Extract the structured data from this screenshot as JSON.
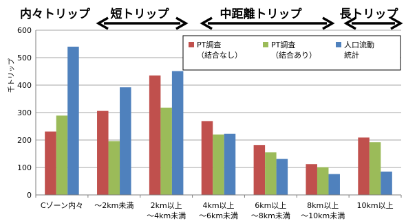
{
  "chart_data": {
    "type": "bar",
    "ylabel": "千トリップ",
    "ylim": [
      0,
      600
    ],
    "yticks": [
      "0",
      "100",
      "200",
      "300",
      "400",
      "500",
      "600"
    ],
    "grid": true,
    "legend_position": "top-right",
    "categories": [
      [
        "Cゾーン内々"
      ],
      [
        "～2km未満"
      ],
      [
        "2km以上",
        "～4km未満"
      ],
      [
        "4km以上",
        "～6km未満"
      ],
      [
        "6km以上",
        "～8km未満"
      ],
      [
        "8km以上",
        "～10km未満"
      ],
      [
        "10km以上"
      ]
    ],
    "series": [
      {
        "name": [
          "PT調査",
          "（結合なし）"
        ],
        "color": "#c0504d",
        "values": [
          231,
          306,
          435,
          269,
          182,
          112,
          209
        ]
      },
      {
        "name": [
          "PT調査",
          "（結合あり）"
        ],
        "color": "#9bbb59",
        "values": [
          289,
          196,
          318,
          220,
          155,
          101,
          192
        ]
      },
      {
        "name": [
          "人口流動",
          "統計"
        ],
        "color": "#4f81bd",
        "values": [
          540,
          392,
          451,
          223,
          131,
          76,
          85
        ]
      }
    ],
    "bands": [
      {
        "label": "内々トリップ",
        "arrow": false
      },
      {
        "label": "短トリップ",
        "arrow": true
      },
      {
        "label": "中距離トリップ",
        "arrow": true
      },
      {
        "label": "長トリップ",
        "arrow": true
      }
    ]
  }
}
